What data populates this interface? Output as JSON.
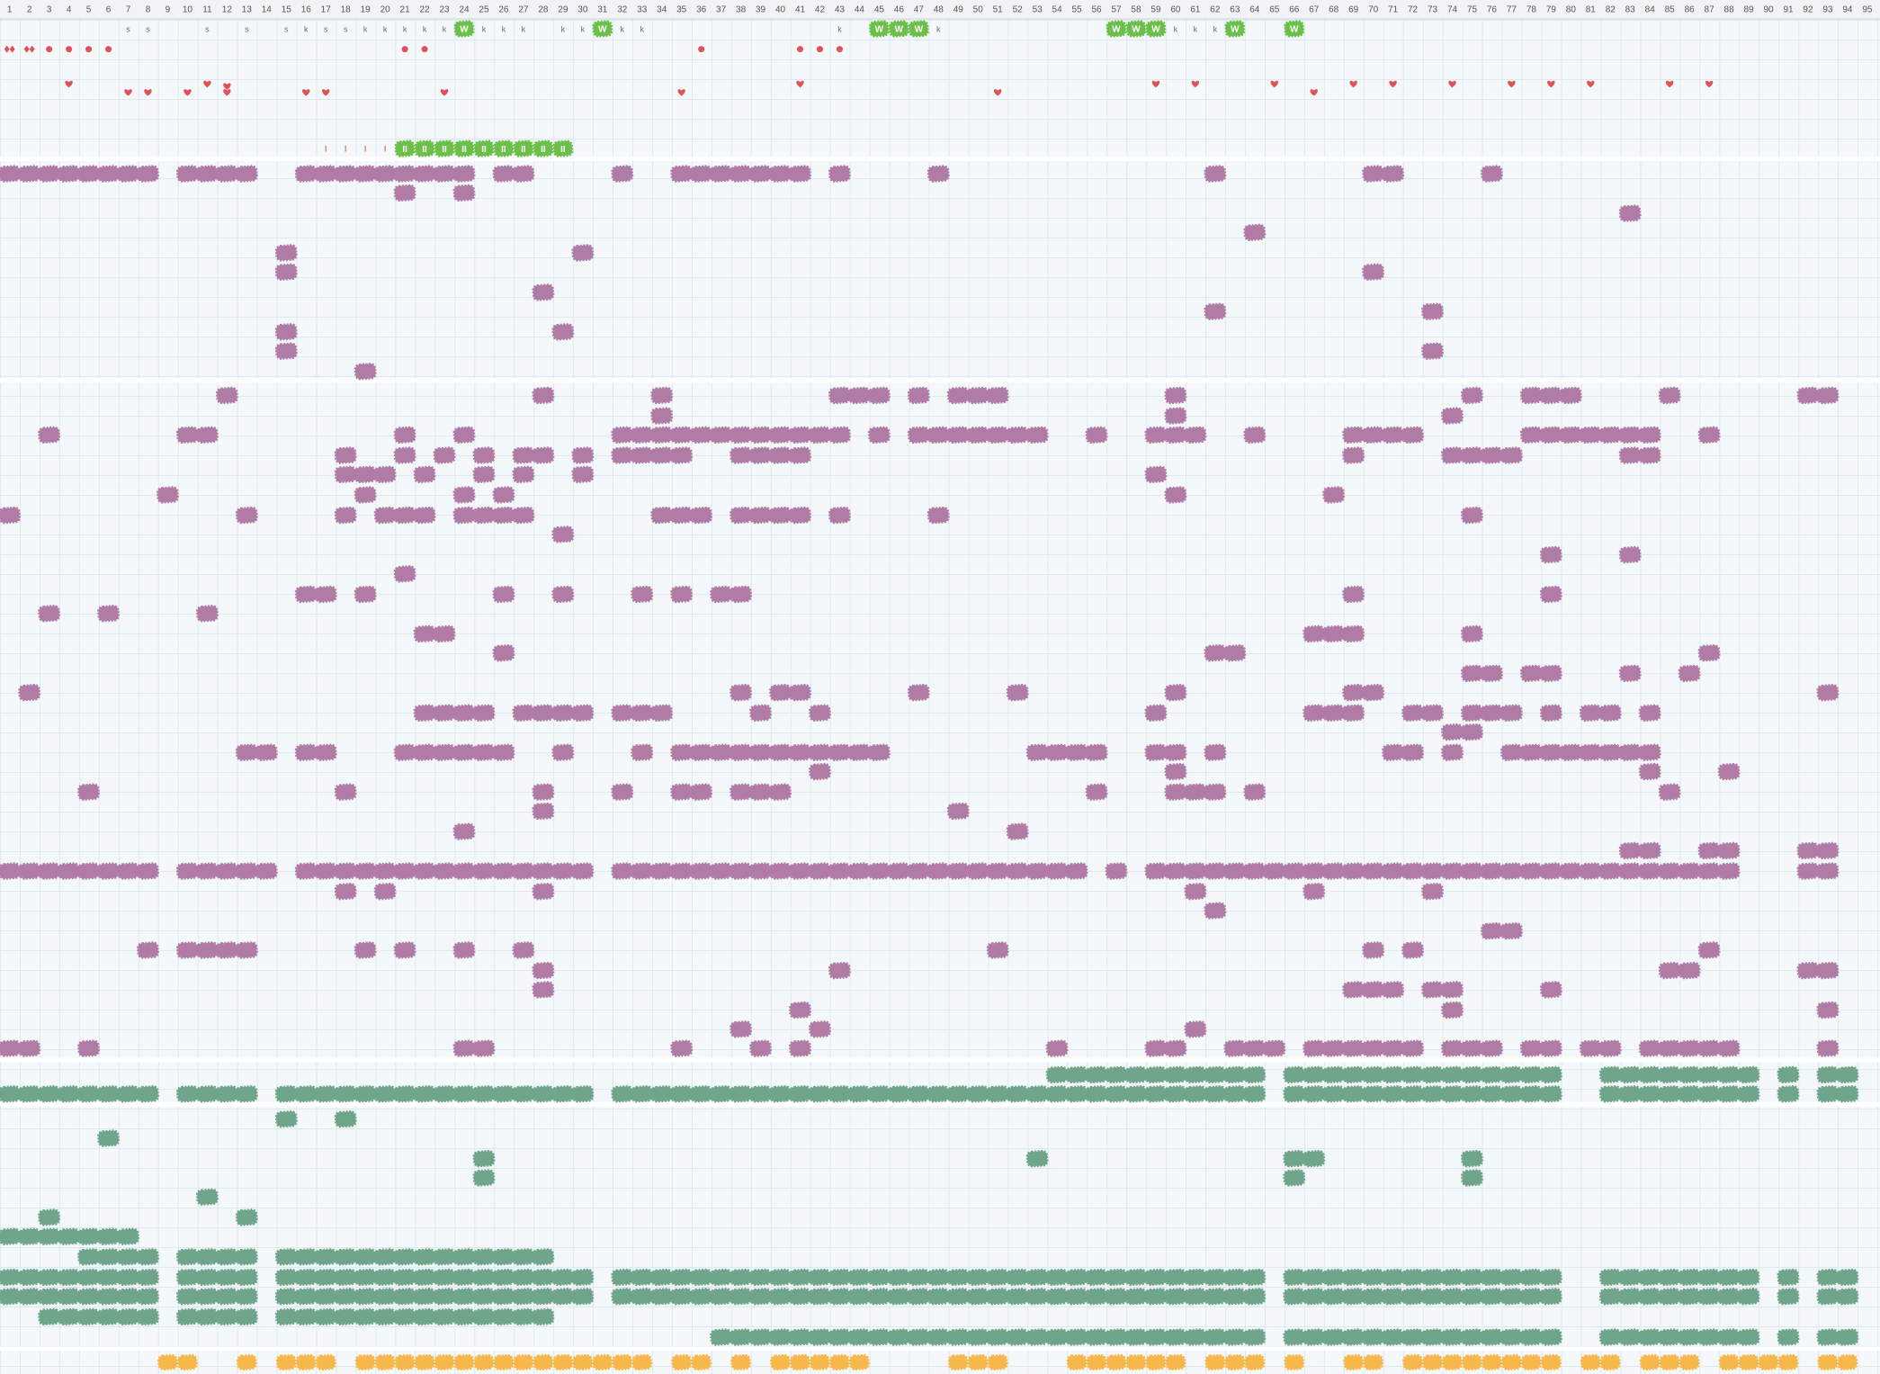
{
  "header": {
    "columns": [
      1,
      2,
      3,
      4,
      5,
      6,
      7,
      8,
      9,
      10,
      11,
      12,
      13,
      14,
      15,
      16,
      17,
      18,
      19,
      20,
      21,
      22,
      23,
      24,
      25,
      26,
      27,
      28,
      29,
      30,
      31,
      32,
      33,
      34,
      35,
      36,
      37,
      38,
      39,
      40,
      41,
      42,
      43,
      44,
      45,
      46,
      47,
      48,
      49,
      50,
      51,
      52,
      53,
      54,
      55,
      56,
      57,
      58,
      59,
      60,
      61,
      62,
      63,
      64,
      65,
      66,
      67,
      68,
      69,
      70,
      71,
      72,
      73,
      74,
      75,
      76,
      77,
      78,
      79,
      80,
      81,
      82,
      83,
      84,
      85,
      86,
      87,
      88,
      89,
      90,
      91,
      92,
      93,
      94,
      95
    ]
  },
  "letter_row": {
    "cells": [
      null,
      null,
      null,
      null,
      null,
      null,
      "s",
      "s",
      null,
      null,
      "s",
      null,
      "s",
      null,
      "s",
      "k",
      "s",
      "s",
      "k",
      "k",
      "k",
      "k",
      "k",
      "W",
      "k",
      "k",
      "k",
      null,
      "k",
      "k",
      "W",
      "k",
      "k",
      null,
      null,
      null,
      null,
      null,
      null,
      null,
      null,
      null,
      "k",
      null,
      "W",
      "W",
      "W",
      "k",
      null,
      null,
      null,
      null,
      null,
      null,
      null,
      null,
      "W",
      "W",
      "W",
      "k",
      "k",
      "k",
      "W",
      null,
      null,
      "W",
      null,
      null,
      null,
      null,
      null,
      null,
      null,
      null,
      null,
      null,
      null,
      null,
      null,
      null,
      null,
      null,
      null,
      null,
      null,
      null,
      null,
      null,
      null,
      null,
      null,
      null,
      null,
      null,
      null
    ]
  },
  "pause_row": {
    "cells": [
      null,
      null,
      null,
      null,
      null,
      null,
      null,
      null,
      null,
      null,
      null,
      null,
      null,
      null,
      null,
      null,
      "I",
      "I",
      "I",
      "I",
      "II",
      "II",
      "II",
      "II",
      "II",
      "II",
      "II",
      "II",
      "II",
      null,
      null,
      null,
      null,
      null,
      null,
      null,
      null,
      null,
      null,
      null,
      null,
      null,
      null,
      null,
      null,
      null,
      null,
      null,
      null,
      null,
      null,
      null,
      null,
      null,
      null,
      null,
      null,
      null,
      null,
      null,
      null,
      null,
      null,
      null,
      null,
      null,
      null,
      null,
      null,
      null,
      null,
      null,
      null,
      null,
      null,
      null,
      null,
      null,
      null,
      null,
      null,
      null,
      null,
      null,
      null,
      null,
      null,
      null,
      null,
      null,
      null,
      null,
      null,
      null,
      null
    ]
  }
}
